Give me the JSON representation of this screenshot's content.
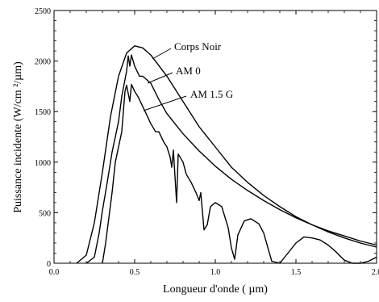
{
  "chart_data": {
    "type": "line",
    "title": "",
    "xlabel": "Longueur d'onde ( µm)",
    "ylabel": "Puissance incidente (W/cm ²/µm)",
    "xlim": [
      0.0,
      2.0
    ],
    "ylim": [
      0,
      2500
    ],
    "x_ticks": [
      "0.0",
      "0.5",
      "1.0",
      "1.5",
      "2.0"
    ],
    "y_ticks": [
      "0",
      "500",
      "1000",
      "1500",
      "2000",
      "2500"
    ],
    "grid": false,
    "legend": "annotations",
    "series": [
      {
        "name": "Corps Noir",
        "color": "#000000",
        "points": [
          [
            0.14,
            0
          ],
          [
            0.2,
            80
          ],
          [
            0.25,
            400
          ],
          [
            0.3,
            900
          ],
          [
            0.35,
            1450
          ],
          [
            0.4,
            1850
          ],
          [
            0.45,
            2080
          ],
          [
            0.5,
            2150
          ],
          [
            0.55,
            2130
          ],
          [
            0.6,
            2060
          ],
          [
            0.7,
            1850
          ],
          [
            0.8,
            1600
          ],
          [
            0.9,
            1350
          ],
          [
            1.0,
            1150
          ],
          [
            1.1,
            950
          ],
          [
            1.2,
            800
          ],
          [
            1.3,
            670
          ],
          [
            1.4,
            560
          ],
          [
            1.5,
            460
          ],
          [
            1.6,
            380
          ],
          [
            1.7,
            310
          ],
          [
            1.8,
            250
          ],
          [
            1.9,
            200
          ],
          [
            2.0,
            160
          ]
        ]
      },
      {
        "name": "AM 0",
        "color": "#000000",
        "points": [
          [
            0.2,
            0
          ],
          [
            0.25,
            60
          ],
          [
            0.28,
            300
          ],
          [
            0.3,
            520
          ],
          [
            0.33,
            800
          ],
          [
            0.36,
            1100
          ],
          [
            0.38,
            1250
          ],
          [
            0.4,
            1400
          ],
          [
            0.42,
            1650
          ],
          [
            0.45,
            1900
          ],
          [
            0.46,
            2050
          ],
          [
            0.47,
            1950
          ],
          [
            0.48,
            2060
          ],
          [
            0.5,
            1950
          ],
          [
            0.53,
            1850
          ],
          [
            0.55,
            1850
          ],
          [
            0.6,
            1780
          ],
          [
            0.65,
            1620
          ],
          [
            0.7,
            1480
          ],
          [
            0.8,
            1280
          ],
          [
            0.9,
            1110
          ],
          [
            1.0,
            960
          ],
          [
            1.1,
            830
          ],
          [
            1.2,
            720
          ],
          [
            1.3,
            620
          ],
          [
            1.4,
            530
          ],
          [
            1.5,
            450
          ],
          [
            1.6,
            380
          ],
          [
            1.7,
            320
          ],
          [
            1.8,
            270
          ],
          [
            1.9,
            220
          ],
          [
            2.0,
            180
          ]
        ]
      },
      {
        "name": "AM 1.5 G",
        "color": "#000000",
        "points": [
          [
            0.3,
            0
          ],
          [
            0.32,
            200
          ],
          [
            0.34,
            450
          ],
          [
            0.36,
            700
          ],
          [
            0.38,
            1000
          ],
          [
            0.4,
            1150
          ],
          [
            0.42,
            1300
          ],
          [
            0.44,
            1700
          ],
          [
            0.45,
            1760
          ],
          [
            0.47,
            1600
          ],
          [
            0.48,
            1770
          ],
          [
            0.5,
            1700
          ],
          [
            0.52,
            1650
          ],
          [
            0.55,
            1550
          ],
          [
            0.58,
            1450
          ],
          [
            0.6,
            1380
          ],
          [
            0.63,
            1300
          ],
          [
            0.65,
            1300
          ],
          [
            0.68,
            1200
          ],
          [
            0.7,
            1150
          ],
          [
            0.72,
            1050
          ],
          [
            0.73,
            950
          ],
          [
            0.74,
            1120
          ],
          [
            0.76,
            600
          ],
          [
            0.77,
            1080
          ],
          [
            0.8,
            1000
          ],
          [
            0.82,
            880
          ],
          [
            0.85,
            800
          ],
          [
            0.88,
            700
          ],
          [
            0.9,
            620
          ],
          [
            0.91,
            700
          ],
          [
            0.93,
            330
          ],
          [
            0.95,
            380
          ],
          [
            0.97,
            560
          ],
          [
            1.0,
            600
          ],
          [
            1.04,
            560
          ],
          [
            1.08,
            350
          ],
          [
            1.1,
            150
          ],
          [
            1.12,
            40
          ],
          [
            1.14,
            280
          ],
          [
            1.18,
            420
          ],
          [
            1.22,
            440
          ],
          [
            1.27,
            390
          ],
          [
            1.3,
            300
          ],
          [
            1.33,
            130
          ],
          [
            1.35,
            20
          ],
          [
            1.4,
            0
          ],
          [
            1.45,
            100
          ],
          [
            1.5,
            200
          ],
          [
            1.55,
            260
          ],
          [
            1.6,
            250
          ],
          [
            1.65,
            230
          ],
          [
            1.7,
            180
          ],
          [
            1.75,
            110
          ],
          [
            1.8,
            30
          ],
          [
            1.85,
            0
          ],
          [
            1.9,
            0
          ],
          [
            1.95,
            20
          ],
          [
            2.0,
            60
          ]
        ]
      }
    ],
    "annotations": [
      {
        "text": "Corps Noir",
        "series": "Corps Noir"
      },
      {
        "text": "AM 0",
        "series": "AM 0"
      },
      {
        "text": "AM 1.5 G",
        "series": "AM 1.5 G"
      }
    ]
  }
}
